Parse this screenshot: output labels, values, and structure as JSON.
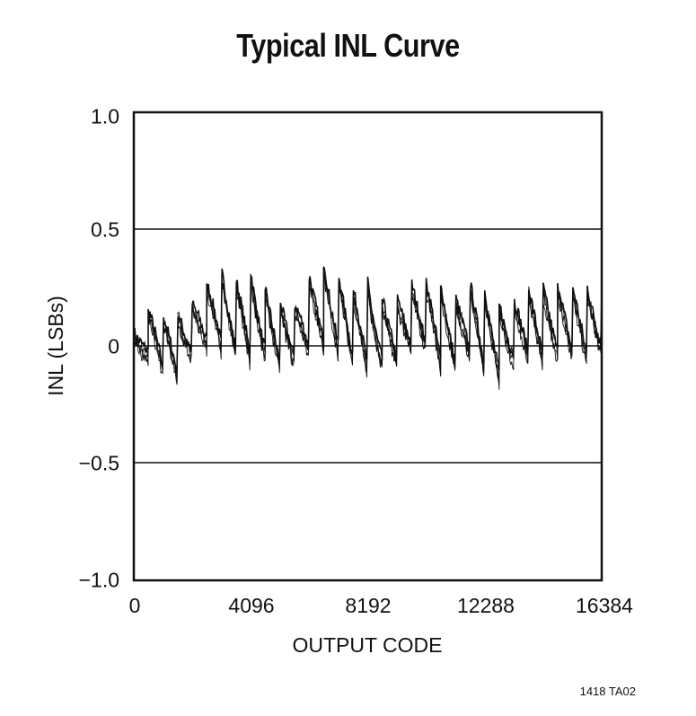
{
  "chart_data": {
    "type": "line",
    "title": "Typical INL Curve",
    "xlabel": "OUTPUT CODE",
    "ylabel": "INL (LSBs)",
    "xlim": [
      0,
      16384
    ],
    "ylim": [
      -1.0,
      1.0
    ],
    "x_ticks": [
      0,
      4096,
      8192,
      12288,
      16384
    ],
    "x_tick_labels": [
      "0",
      "4096",
      "8192",
      "12288",
      "16384"
    ],
    "y_ticks": [
      1.0,
      0.5,
      0,
      -0.5,
      -1.0
    ],
    "y_tick_labels": [
      "1.0",
      "0.5",
      "0",
      "−0.5",
      "−1.0"
    ],
    "grid": "horizontal lines at 0.5, 0, -0.5",
    "legend": null,
    "annotation": "1418 TA02",
    "series": [
      {
        "name": "INL",
        "description": "sawtooth-shaped INL noise band, approx envelope sampled every 512 codes",
        "x": [
          0,
          512,
          1024,
          1536,
          2048,
          2560,
          3072,
          3584,
          4096,
          4608,
          5120,
          5632,
          6144,
          6656,
          7168,
          7680,
          8192,
          8704,
          9216,
          9728,
          10240,
          10752,
          11264,
          11776,
          12288,
          12800,
          13312,
          13824,
          14336,
          14848,
          15360,
          15872,
          16384
        ],
        "max": [
          0.06,
          0.16,
          0.14,
          0.15,
          0.18,
          0.27,
          0.32,
          0.28,
          0.32,
          0.24,
          0.2,
          0.18,
          0.3,
          0.34,
          0.31,
          0.24,
          0.27,
          0.2,
          0.21,
          0.27,
          0.28,
          0.26,
          0.21,
          0.27,
          0.24,
          0.18,
          0.2,
          0.25,
          0.25,
          0.27,
          0.26,
          0.26,
          0.25
        ],
        "min": [
          -0.15,
          -0.02,
          -0.1,
          -0.12,
          -0.02,
          0.02,
          0.0,
          -0.02,
          -0.06,
          -0.02,
          -0.08,
          -0.05,
          -0.02,
          0.01,
          0.0,
          -0.05,
          -0.1,
          -0.06,
          -0.06,
          0.0,
          0.0,
          -0.07,
          -0.07,
          -0.02,
          -0.1,
          -0.12,
          -0.04,
          -0.04,
          -0.06,
          -0.03,
          -0.02,
          -0.05,
          0.0
        ]
      }
    ]
  },
  "page": {
    "title": "Typical INL Curve",
    "ylabel": "INL (LSBs)",
    "xlabel": "OUTPUT CODE",
    "footnote": "1418 TA02",
    "yticks": [
      "1.0",
      "0.5",
      "0",
      "−0.5",
      "−1.0"
    ],
    "xticks": [
      "0",
      "4096",
      "8192",
      "12288",
      "16384"
    ]
  }
}
